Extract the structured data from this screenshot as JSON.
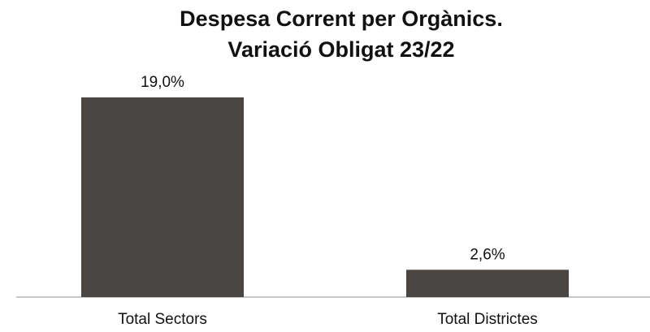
{
  "chart_data": {
    "type": "bar",
    "title": [
      "Despesa Corrent per Orgànics.",
      "Variació Obligat 23/22"
    ],
    "categories": [
      "Total Sectors",
      "Total Districtes"
    ],
    "values": [
      19.0,
      2.6
    ],
    "value_labels": [
      "19,0%",
      "2,6%"
    ],
    "color": "#4a4643"
  }
}
